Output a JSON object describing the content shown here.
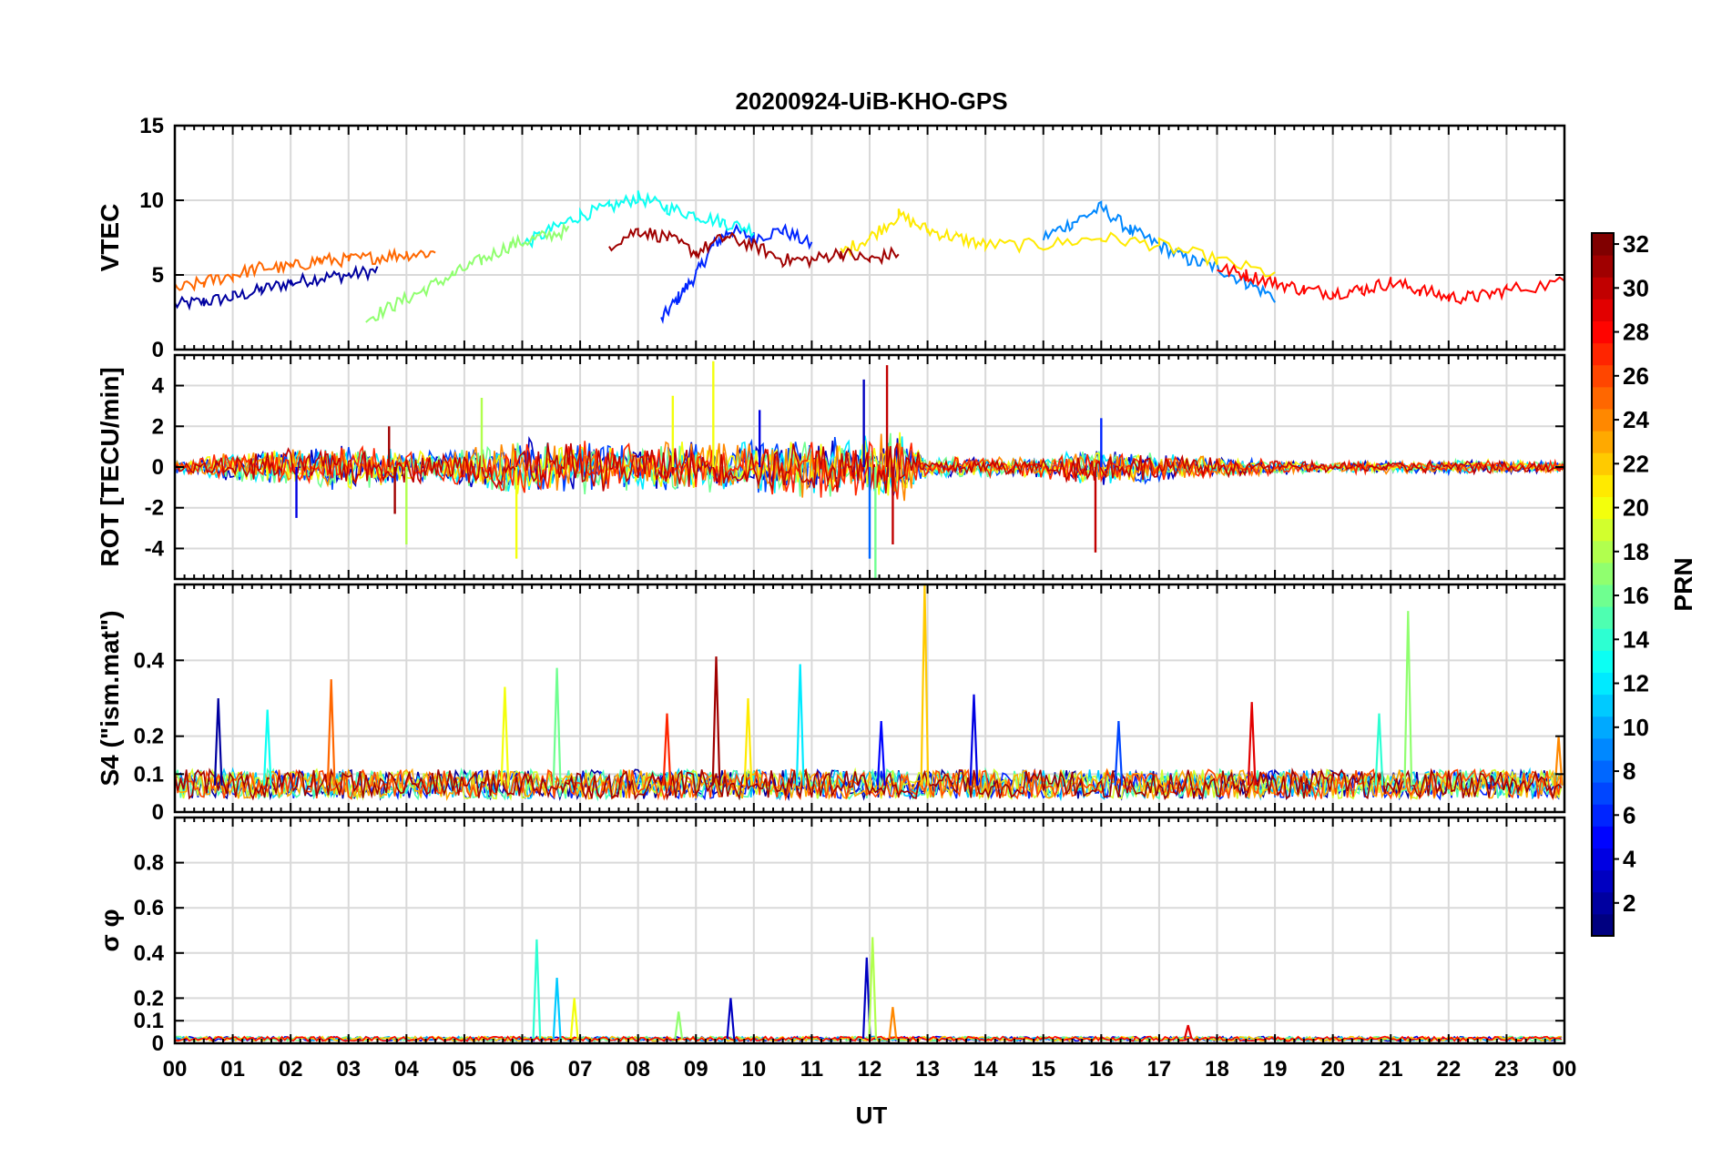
{
  "title": "20200924-UiB-KHO-GPS",
  "x_axis": {
    "label": "UT",
    "tick_labels": [
      "00",
      "01",
      "02",
      "03",
      "04",
      "05",
      "06",
      "07",
      "08",
      "09",
      "10",
      "11",
      "12",
      "13",
      "14",
      "15",
      "16",
      "17",
      "18",
      "19",
      "20",
      "21",
      "22",
      "23",
      "00"
    ],
    "range_hours": [
      0,
      24
    ]
  },
  "colorbar": {
    "label": "PRN",
    "range": [
      1,
      32
    ],
    "tick_labels": [
      "2",
      "4",
      "6",
      "8",
      "10",
      "12",
      "14",
      "16",
      "18",
      "20",
      "22",
      "24",
      "26",
      "28",
      "30",
      "32"
    ],
    "colormap": "jet"
  },
  "chart_data": [
    {
      "type": "line",
      "panel": "vtec",
      "ylabel": "VTEC",
      "ylim": [
        0,
        15
      ],
      "yticks": [
        0,
        5,
        10,
        15
      ],
      "grid": true,
      "series": [
        {
          "prn": 2,
          "x": [
            0,
            0.5,
            1,
            1.5,
            2,
            2.5,
            3,
            3.5
          ],
          "y": [
            3.0,
            3.2,
            3.5,
            4.0,
            4.5,
            4.8,
            5.0,
            5.3
          ]
        },
        {
          "prn": 6,
          "x": [
            8.4,
            8.7,
            9.0,
            9.3,
            9.6,
            10.0,
            10.5,
            11.0
          ],
          "y": [
            2.0,
            3.5,
            5.0,
            7.0,
            8.0,
            7.5,
            8.0,
            7.0
          ]
        },
        {
          "prn": 9,
          "x": [
            15.0,
            15.5,
            16.0,
            16.5,
            17.0,
            17.5,
            18.0,
            18.5,
            19.0
          ],
          "y": [
            7.5,
            8.5,
            9.5,
            8.0,
            7.0,
            6.0,
            5.5,
            4.5,
            3.5
          ]
        },
        {
          "prn": 13,
          "x": [
            6.0,
            6.5,
            7.0,
            7.5,
            8.0,
            8.5,
            9.0,
            9.5,
            10.0
          ],
          "y": [
            7.0,
            8.0,
            9.0,
            9.5,
            10.2,
            9.5,
            9.0,
            8.5,
            8.0
          ]
        },
        {
          "prn": 17,
          "x": [
            3.3,
            3.8,
            4.3,
            4.8,
            5.3,
            5.8,
            6.3,
            6.8
          ],
          "y": [
            2.0,
            3.0,
            4.0,
            5.0,
            6.0,
            7.0,
            7.5,
            8.0
          ]
        },
        {
          "prn": 21,
          "x": [
            11.5,
            12.0,
            12.5,
            13.0,
            13.5,
            14.0,
            15.0,
            16.0,
            17.0,
            18.0,
            19.0
          ],
          "y": [
            6.5,
            7.5,
            9.0,
            8.0,
            7.5,
            7.0,
            7.0,
            7.5,
            7.0,
            6.0,
            5.0
          ]
        },
        {
          "prn": 25,
          "x": [
            0,
            0.5,
            1,
            1.5,
            2,
            2.5,
            3,
            3.5,
            4,
            4.5
          ],
          "y": [
            4.0,
            4.5,
            5.0,
            5.5,
            5.5,
            6.0,
            6.0,
            6.2,
            6.4,
            6.5
          ]
        },
        {
          "prn": 28,
          "x": [
            18.0,
            18.5,
            19.0,
            19.5,
            20.0,
            20.5,
            21.0,
            21.5,
            22.0,
            22.5,
            23.0,
            24.0
          ],
          "y": [
            5.5,
            5.0,
            4.5,
            4.0,
            3.8,
            4.0,
            4.5,
            4.0,
            3.5,
            3.5,
            4.0,
            4.5
          ]
        },
        {
          "prn": 31,
          "x": [
            7.5,
            8.0,
            8.5,
            9.0,
            9.5,
            10.0,
            10.5,
            11.0,
            11.5,
            12.0,
            12.5
          ],
          "y": [
            7.0,
            8.0,
            7.5,
            6.5,
            7.5,
            7.0,
            6.0,
            6.0,
            6.5,
            6.0,
            6.5
          ]
        }
      ]
    },
    {
      "type": "line",
      "panel": "rot",
      "ylabel": "ROT [TECU/min]",
      "ylim": [
        -5.5,
        5.5
      ],
      "yticks": [
        -4,
        -2,
        0,
        2,
        4
      ],
      "grid": true,
      "spikes": [
        {
          "x": 3.7,
          "y": 2.0,
          "prn": 31
        },
        {
          "x": 3.8,
          "y": -2.3,
          "prn": 31
        },
        {
          "x": 4.0,
          "y": -3.8,
          "prn": 18
        },
        {
          "x": 5.3,
          "y": 3.4,
          "prn": 18
        },
        {
          "x": 5.9,
          "y": -4.5,
          "prn": 20
        },
        {
          "x": 9.3,
          "y": 5.2,
          "prn": 20
        },
        {
          "x": 8.6,
          "y": 3.5,
          "prn": 20
        },
        {
          "x": 11.9,
          "y": 4.3,
          "prn": 3
        },
        {
          "x": 12.0,
          "y": -4.5,
          "prn": 8
        },
        {
          "x": 12.3,
          "y": 5.0,
          "prn": 30
        },
        {
          "x": 12.4,
          "y": -3.8,
          "prn": 30
        },
        {
          "x": 12.1,
          "y": -5.5,
          "prn": 16
        },
        {
          "x": 15.9,
          "y": -4.2,
          "prn": 30
        },
        {
          "x": 16.0,
          "y": 2.4,
          "prn": 6
        },
        {
          "x": 2.1,
          "y": -2.5,
          "prn": 4
        },
        {
          "x": 10.1,
          "y": 2.8,
          "prn": 4
        }
      ],
      "noise_envelope": [
        {
          "x": 0,
          "amp": 0.3
        },
        {
          "x": 1,
          "amp": 0.8
        },
        {
          "x": 3,
          "amp": 1.2
        },
        {
          "x": 4.5,
          "amp": 0.8
        },
        {
          "x": 6,
          "amp": 1.5
        },
        {
          "x": 9,
          "amp": 1.3
        },
        {
          "x": 11.5,
          "amp": 1.6
        },
        {
          "x": 12.5,
          "amp": 2.0
        },
        {
          "x": 13,
          "amp": 0.5
        },
        {
          "x": 15,
          "amp": 0.6
        },
        {
          "x": 16,
          "amp": 1.0
        },
        {
          "x": 18,
          "amp": 0.5
        },
        {
          "x": 20,
          "amp": 0.3
        },
        {
          "x": 22,
          "amp": 0.4
        },
        {
          "x": 24,
          "amp": 0.3
        }
      ]
    },
    {
      "type": "line",
      "panel": "s4",
      "ylabel": "S4 (\"ism.mat\")",
      "ylim": [
        0,
        0.6
      ],
      "yticks": [
        0,
        0.1,
        0.2,
        0.4
      ],
      "ytick_labels": [
        "0",
        "0.1",
        "0.2",
        "0.4"
      ],
      "grid": true,
      "spikes": [
        {
          "x": 0.75,
          "y": 0.3,
          "prn": 2
        },
        {
          "x": 1.6,
          "y": 0.27,
          "prn": 13
        },
        {
          "x": 2.7,
          "y": 0.35,
          "prn": 25
        },
        {
          "x": 5.7,
          "y": 0.33,
          "prn": 20
        },
        {
          "x": 6.6,
          "y": 0.38,
          "prn": 16
        },
        {
          "x": 8.5,
          "y": 0.26,
          "prn": 27
        },
        {
          "x": 9.35,
          "y": 0.41,
          "prn": 31
        },
        {
          "x": 9.9,
          "y": 0.3,
          "prn": 21
        },
        {
          "x": 10.8,
          "y": 0.39,
          "prn": 12
        },
        {
          "x": 12.2,
          "y": 0.24,
          "prn": 5
        },
        {
          "x": 12.95,
          "y": 0.6,
          "prn": 22
        },
        {
          "x": 13.8,
          "y": 0.31,
          "prn": 4
        },
        {
          "x": 16.3,
          "y": 0.24,
          "prn": 7
        },
        {
          "x": 18.6,
          "y": 0.29,
          "prn": 29
        },
        {
          "x": 20.8,
          "y": 0.26,
          "prn": 14
        },
        {
          "x": 21.3,
          "y": 0.53,
          "prn": 17
        },
        {
          "x": 23.9,
          "y": 0.2,
          "prn": 24
        }
      ],
      "baseline": 0.07
    },
    {
      "type": "line",
      "panel": "sigma_phi",
      "ylabel": "σ φ",
      "ylim": [
        0,
        1.0
      ],
      "yticks": [
        0,
        0.1,
        0.2,
        0.4,
        0.6,
        0.8
      ],
      "ytick_labels": [
        "0",
        "0.1",
        "0.2",
        "0.4",
        "0.6",
        "0.8"
      ],
      "grid": true,
      "spikes": [
        {
          "x": 6.25,
          "y": 0.46,
          "prn": 14
        },
        {
          "x": 6.6,
          "y": 0.29,
          "prn": 11
        },
        {
          "x": 6.9,
          "y": 0.2,
          "prn": 20
        },
        {
          "x": 8.7,
          "y": 0.14,
          "prn": 17
        },
        {
          "x": 9.6,
          "y": 0.2,
          "prn": 3
        },
        {
          "x": 11.95,
          "y": 0.38,
          "prn": 3
        },
        {
          "x": 12.05,
          "y": 0.47,
          "prn": 18
        },
        {
          "x": 12.4,
          "y": 0.16,
          "prn": 24
        },
        {
          "x": 17.5,
          "y": 0.08,
          "prn": 29
        }
      ],
      "baseline": 0.02
    }
  ]
}
